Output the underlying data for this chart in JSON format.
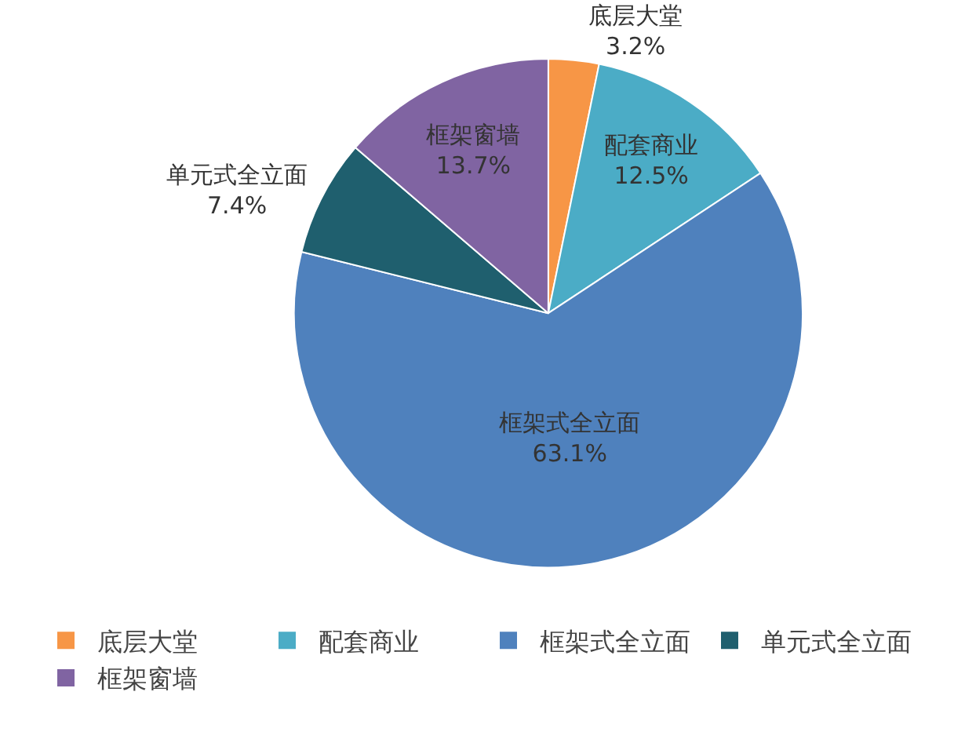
{
  "chart_data": {
    "type": "pie",
    "categories": [
      "底层大堂",
      "配套商业",
      "框架式全立面",
      "单元式全立面",
      "框架窗墙"
    ],
    "values": [
      3.2,
      12.5,
      63.1,
      7.4,
      13.7
    ],
    "colors": [
      "#f79646",
      "#4bacc6",
      "#4f81bd",
      "#1f5f6e",
      "#8064a2"
    ],
    "value_labels": [
      "3.2%",
      "12.5%",
      "63.1%",
      "7.4%",
      "13.7%"
    ],
    "legend": "bottom"
  }
}
